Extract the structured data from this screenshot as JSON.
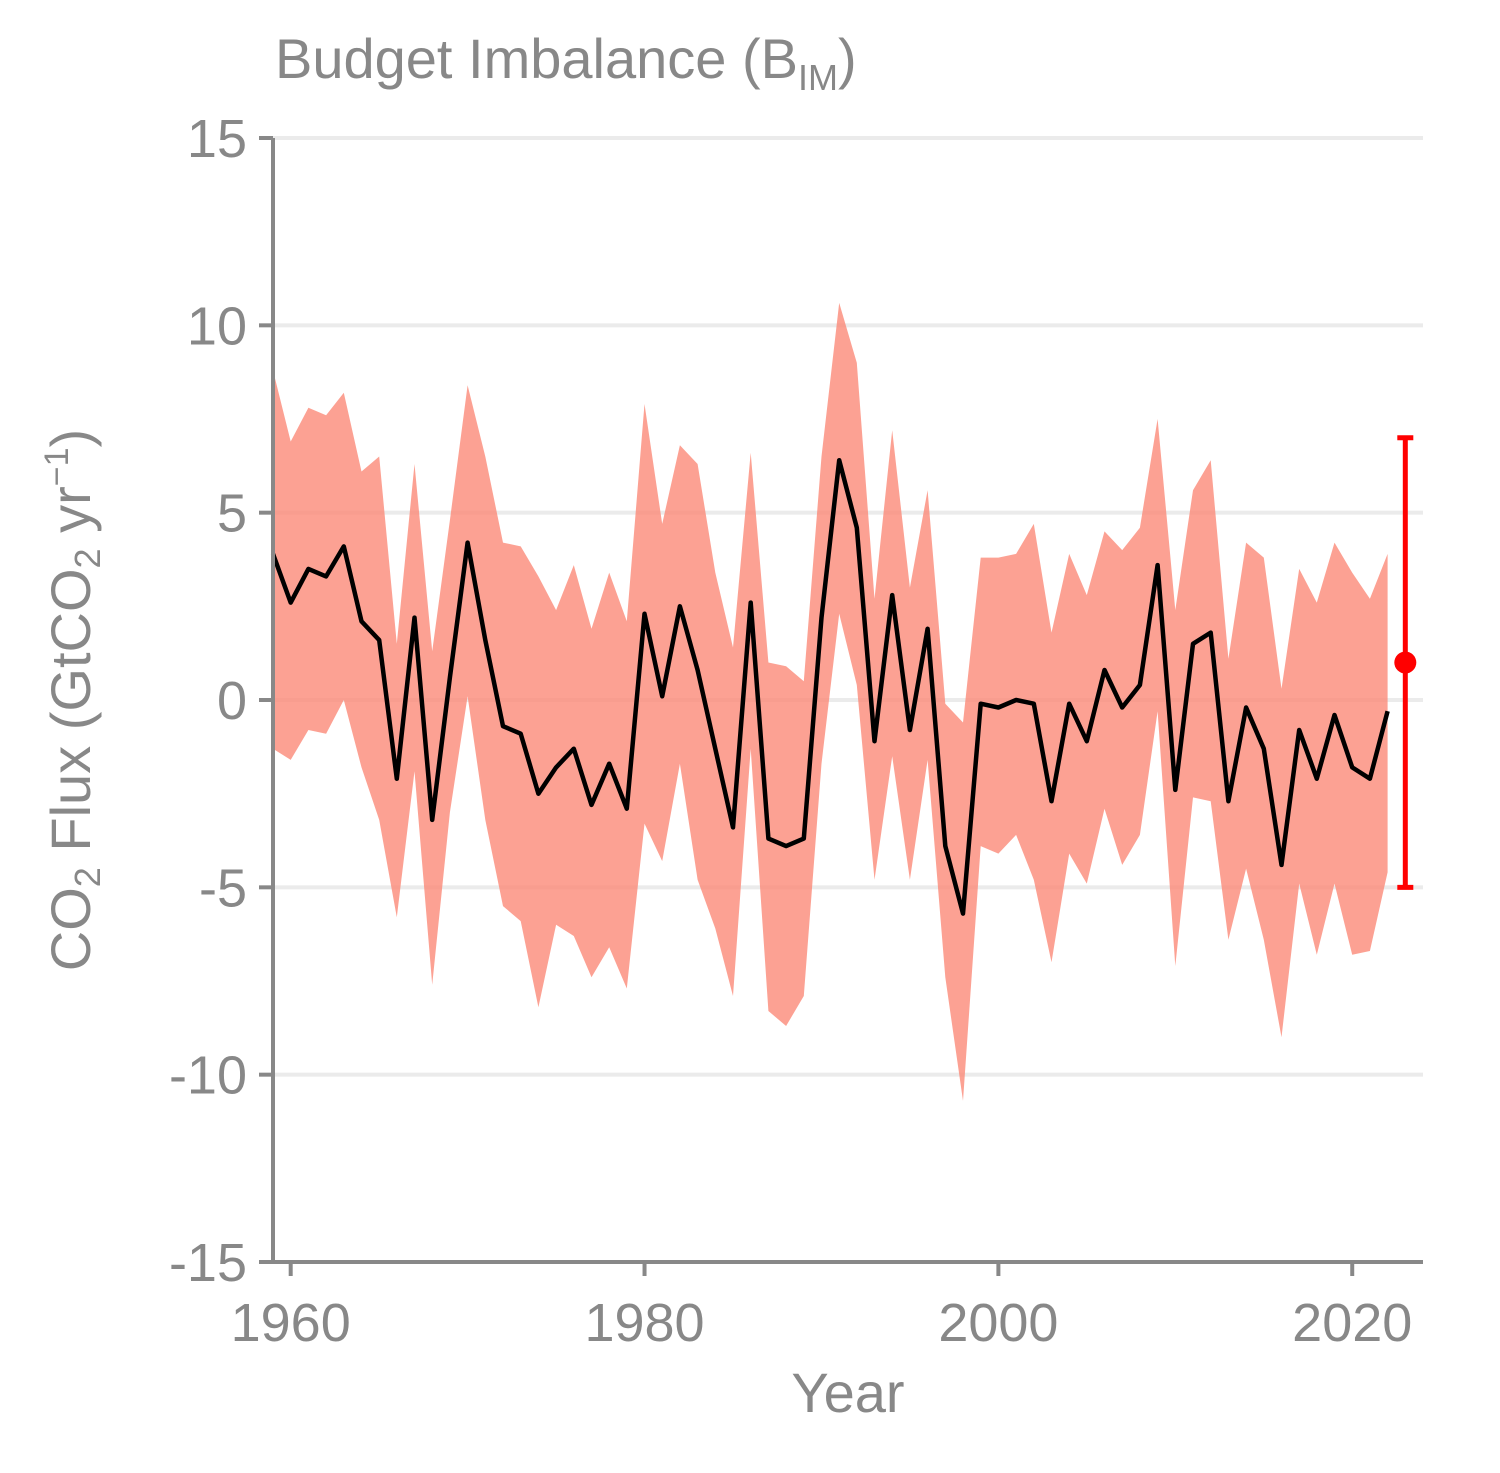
{
  "chart_data": {
    "type": "line",
    "title": {
      "main": "Budget Imbalance (B",
      "sub": "IM",
      "close": ")"
    },
    "xlabel": "Year",
    "ylabel": {
      "p1": "CO",
      "s1": "2",
      "p2": " Flux (GtCO",
      "s2": "2",
      "p3": " yr",
      "sup": "−1",
      "p4": ")"
    },
    "xlim": [
      1959,
      2024
    ],
    "ylim": [
      -15,
      15
    ],
    "xticks": [
      1960,
      1980,
      2000,
      2020
    ],
    "yticks": [
      -15,
      -10,
      -5,
      0,
      5,
      10,
      15
    ],
    "ytick_labels": [
      "-15",
      "-10",
      "-5",
      "0",
      "5",
      "10",
      "15"
    ],
    "grid": "horizontal",
    "colors": {
      "line": "#000000",
      "band": "#fb8a78",
      "marker": "#ff0000",
      "axis": "#888888",
      "grid": "#ebebeb"
    },
    "x": [
      1959,
      1960,
      1961,
      1962,
      1963,
      1964,
      1965,
      1966,
      1967,
      1968,
      1969,
      1970,
      1971,
      1972,
      1973,
      1974,
      1975,
      1976,
      1977,
      1978,
      1979,
      1980,
      1981,
      1982,
      1983,
      1984,
      1985,
      1986,
      1987,
      1988,
      1989,
      1990,
      1991,
      1992,
      1993,
      1994,
      1995,
      1996,
      1997,
      1998,
      1999,
      2000,
      2001,
      2002,
      2003,
      2004,
      2005,
      2006,
      2007,
      2008,
      2009,
      2010,
      2011,
      2012,
      2013,
      2014,
      2015,
      2016,
      2017,
      2018,
      2019,
      2020,
      2021,
      2022
    ],
    "series": [
      {
        "values": [
          3.9,
          2.6,
          3.5,
          3.3,
          4.1,
          2.1,
          1.6,
          -2.1,
          2.2,
          -3.2,
          0.6,
          4.2,
          1.6,
          -0.7,
          -0.9,
          -2.5,
          -1.8,
          -1.3,
          -2.8,
          -1.7,
          -2.9,
          2.3,
          0.1,
          2.5,
          0.8,
          -1.3,
          -3.4,
          2.6,
          -3.7,
          -3.9,
          -3.7,
          2.2,
          6.4,
          4.6,
          -1.1,
          2.8,
          -0.8,
          1.9,
          -3.9,
          -5.7,
          -0.1,
          -0.2,
          0.0,
          -0.1,
          -2.7,
          -0.1,
          -1.1,
          0.8,
          -0.2,
          0.4,
          3.6,
          -2.4,
          1.5,
          1.8,
          -2.7,
          -0.2,
          -1.3,
          -4.4,
          -0.8,
          -2.1,
          -0.4,
          -1.8,
          -2.1,
          -0.3
        ]
      }
    ],
    "band_upper": [
      8.8,
      6.9,
      7.8,
      7.6,
      8.2,
      6.1,
      6.5,
      1.5,
      6.3,
      1.3,
      4.8,
      8.4,
      6.5,
      4.2,
      4.1,
      3.3,
      2.4,
      3.6,
      1.9,
      3.4,
      2.1,
      7.9,
      4.7,
      6.8,
      6.3,
      3.4,
      1.4,
      6.6,
      1.0,
      0.9,
      0.5,
      6.5,
      10.6,
      9.0,
      2.7,
      7.2,
      3.0,
      5.6,
      -0.1,
      -0.6,
      3.8,
      3.8,
      3.9,
      4.7,
      1.8,
      3.9,
      2.8,
      4.5,
      4.0,
      4.6,
      7.5,
      2.4,
      5.6,
      6.4,
      1.1,
      4.2,
      3.8,
      0.3,
      3.5,
      2.6,
      4.2,
      3.4,
      2.7,
      3.9
    ],
    "band_lower": [
      -1.3,
      -1.6,
      -0.8,
      -0.9,
      0.0,
      -1.8,
      -3.2,
      -5.8,
      -1.9,
      -7.6,
      -3.0,
      0.1,
      -3.2,
      -5.5,
      -5.9,
      -8.2,
      -6.0,
      -6.3,
      -7.4,
      -6.6,
      -7.7,
      -3.3,
      -4.3,
      -1.7,
      -4.8,
      -6.1,
      -7.9,
      -1.3,
      -8.3,
      -8.7,
      -7.9,
      -1.7,
      2.3,
      0.4,
      -4.8,
      -1.5,
      -4.8,
      -1.6,
      -7.4,
      -10.7,
      -3.9,
      -4.1,
      -3.6,
      -4.8,
      -7.0,
      -4.1,
      -4.9,
      -2.9,
      -4.4,
      -3.6,
      -0.3,
      -7.1,
      -2.6,
      -2.7,
      -6.4,
      -4.5,
      -6.4,
      -9.0,
      -4.9,
      -6.8,
      -4.9,
      -6.8,
      -6.7,
      -4.6
    ],
    "summary_point": {
      "x": 2023,
      "y": 1.0,
      "lower": -5.0,
      "upper": 7.0
    }
  }
}
